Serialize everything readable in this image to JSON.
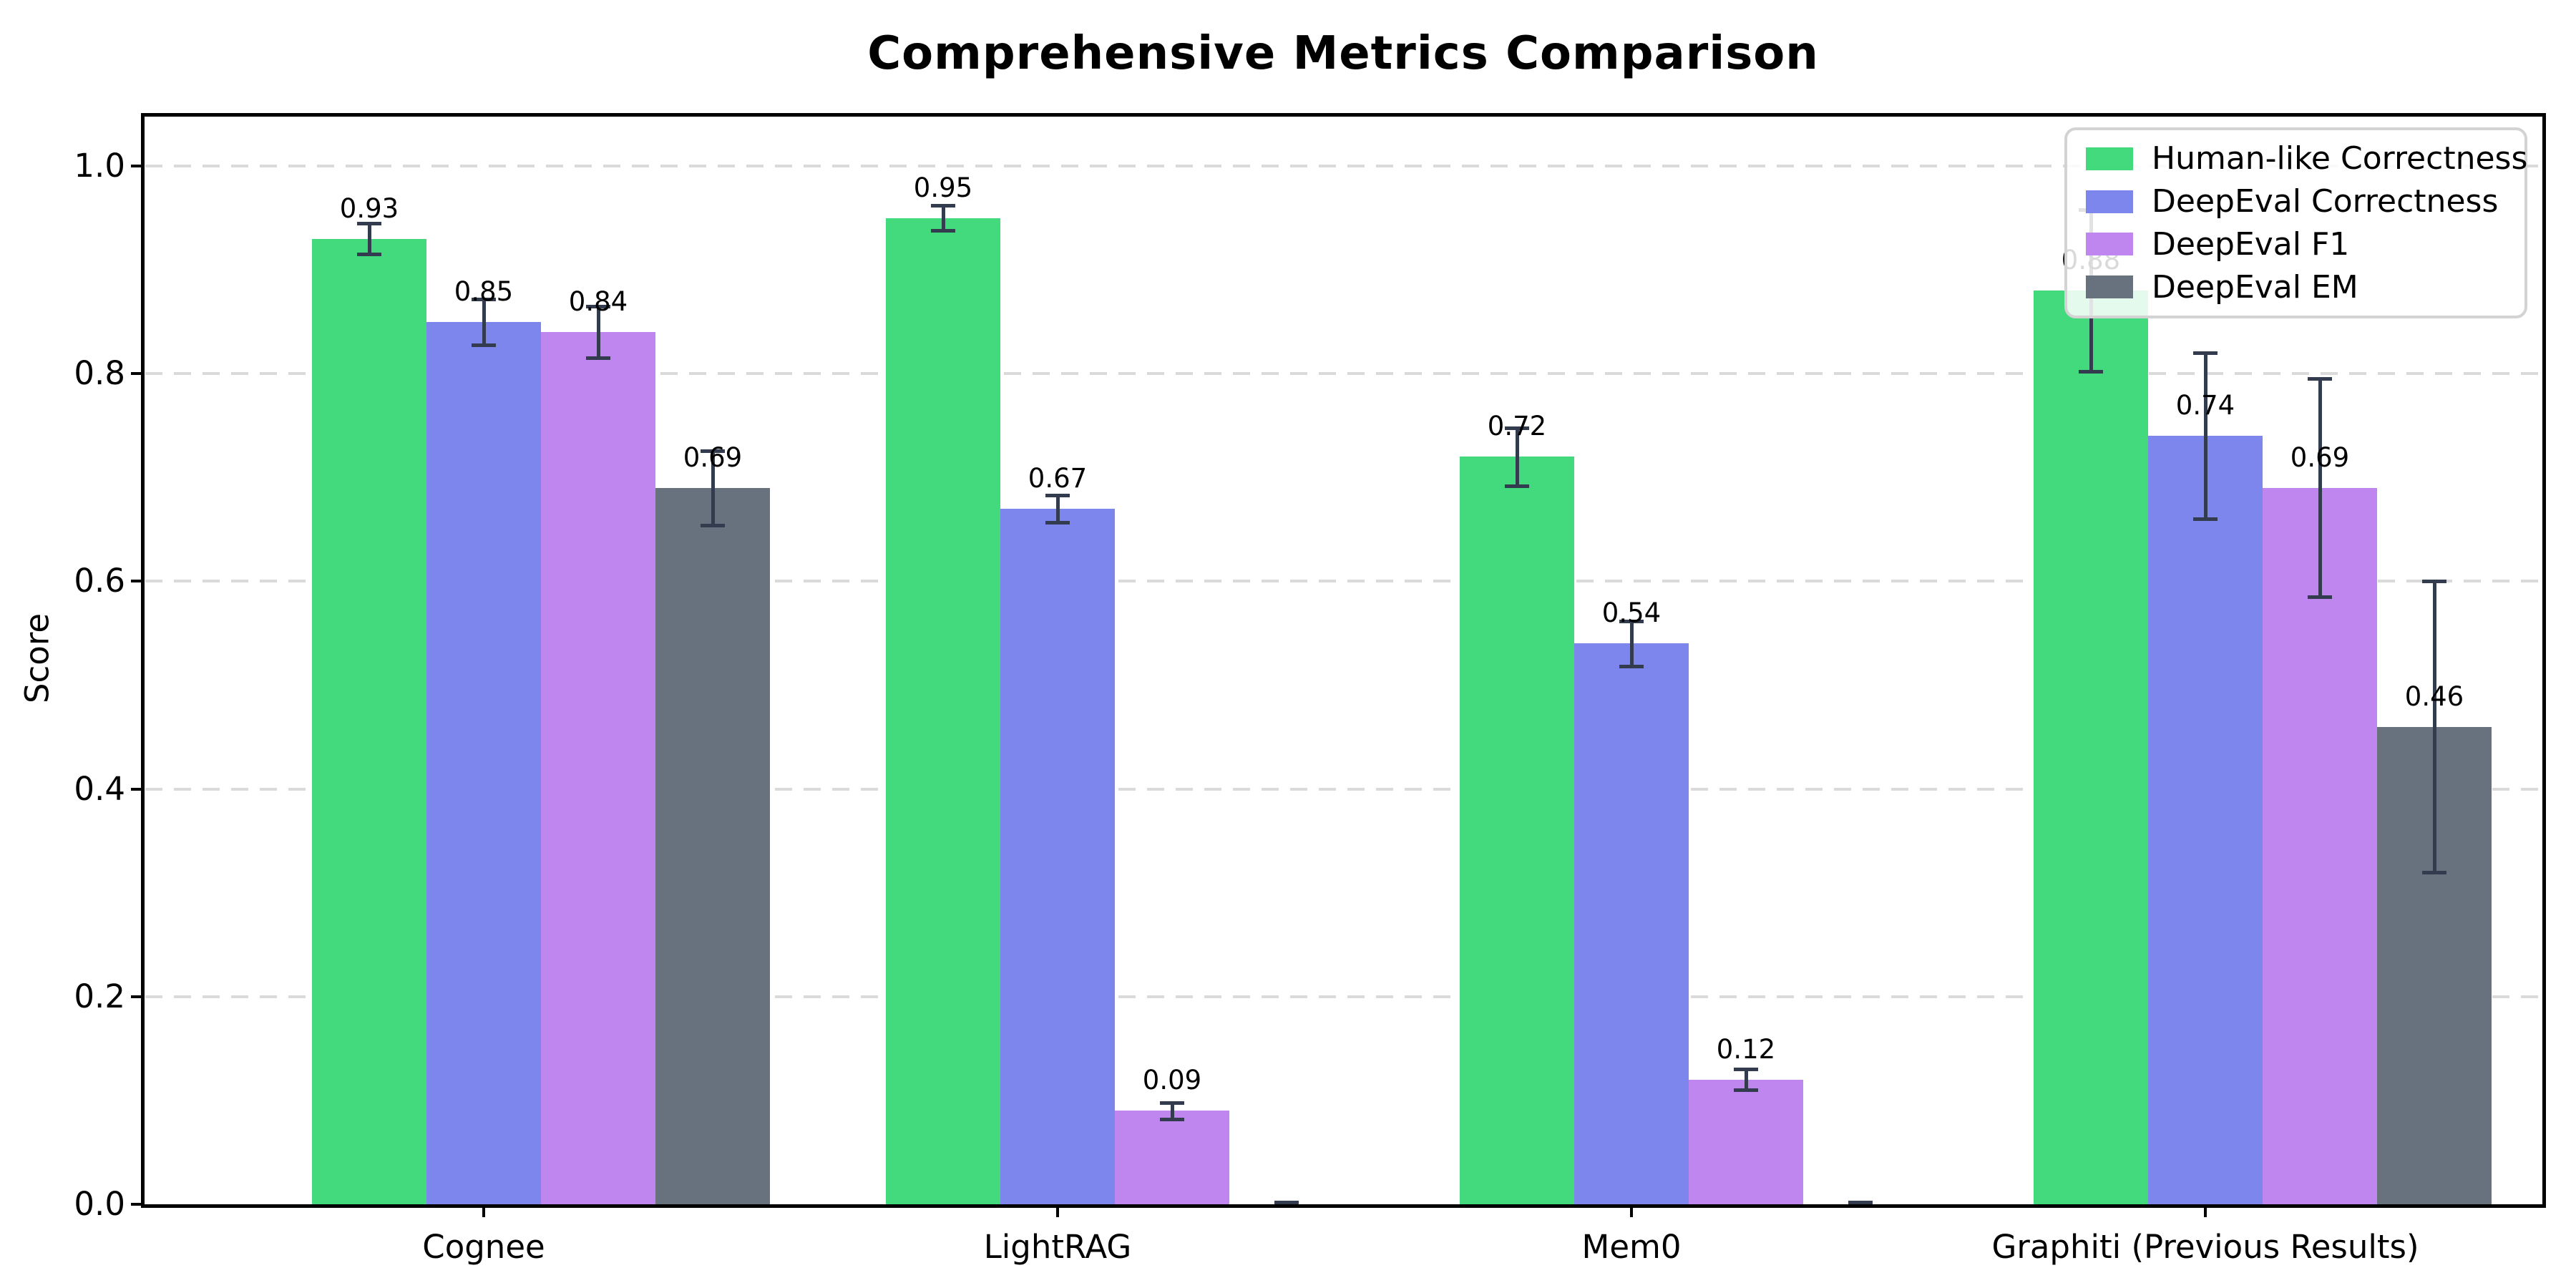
{
  "title": "Comprehensive Metrics Comparison",
  "ylabel": "Score",
  "chart_data": {
    "type": "bar",
    "categories": [
      "Cognee",
      "LightRAG",
      "Mem0",
      "Graphiti (Previous Results)"
    ],
    "series": [
      {
        "name": "Human-like Correctness",
        "color": "#43d97d",
        "values": [
          0.93,
          0.95,
          0.72,
          0.88
        ],
        "errors": [
          0.015,
          0.012,
          0.028,
          0.078
        ],
        "labels": [
          "0.93",
          "0.95",
          "0.72",
          "0.88"
        ]
      },
      {
        "name": "DeepEval Correctness",
        "color": "#7d86ed",
        "values": [
          0.85,
          0.67,
          0.54,
          0.74
        ],
        "errors": [
          0.022,
          0.013,
          0.022,
          0.08
        ],
        "labels": [
          "0.85",
          "0.67",
          "0.54",
          "0.74"
        ]
      },
      {
        "name": "DeepEval F1",
        "color": "#bf86f0",
        "values": [
          0.84,
          0.09,
          0.12,
          0.69
        ],
        "errors": [
          0.025,
          0.008,
          0.01,
          0.105
        ],
        "labels": [
          "0.84",
          "0.09",
          "0.12",
          "0.69"
        ]
      },
      {
        "name": "DeepEval EM",
        "color": "#68717e",
        "values": [
          0.69,
          0.0,
          0.0,
          0.46
        ],
        "errors": [
          0.036,
          0.002,
          0.002,
          0.14
        ],
        "labels": [
          "0.69",
          null,
          null,
          "0.46"
        ]
      }
    ],
    "yticks": [
      "0.0",
      "0.2",
      "0.4",
      "0.6",
      "0.8",
      "1.0"
    ],
    "ytick_values": [
      0.0,
      0.2,
      0.4,
      0.6,
      0.8,
      1.0
    ],
    "ylim": [
      0,
      1.05
    ],
    "grid": "horizontal-dashed",
    "legend_position": "upper right",
    "error_bar_color": "#323c4e",
    "gridline_color": "#dadada"
  }
}
